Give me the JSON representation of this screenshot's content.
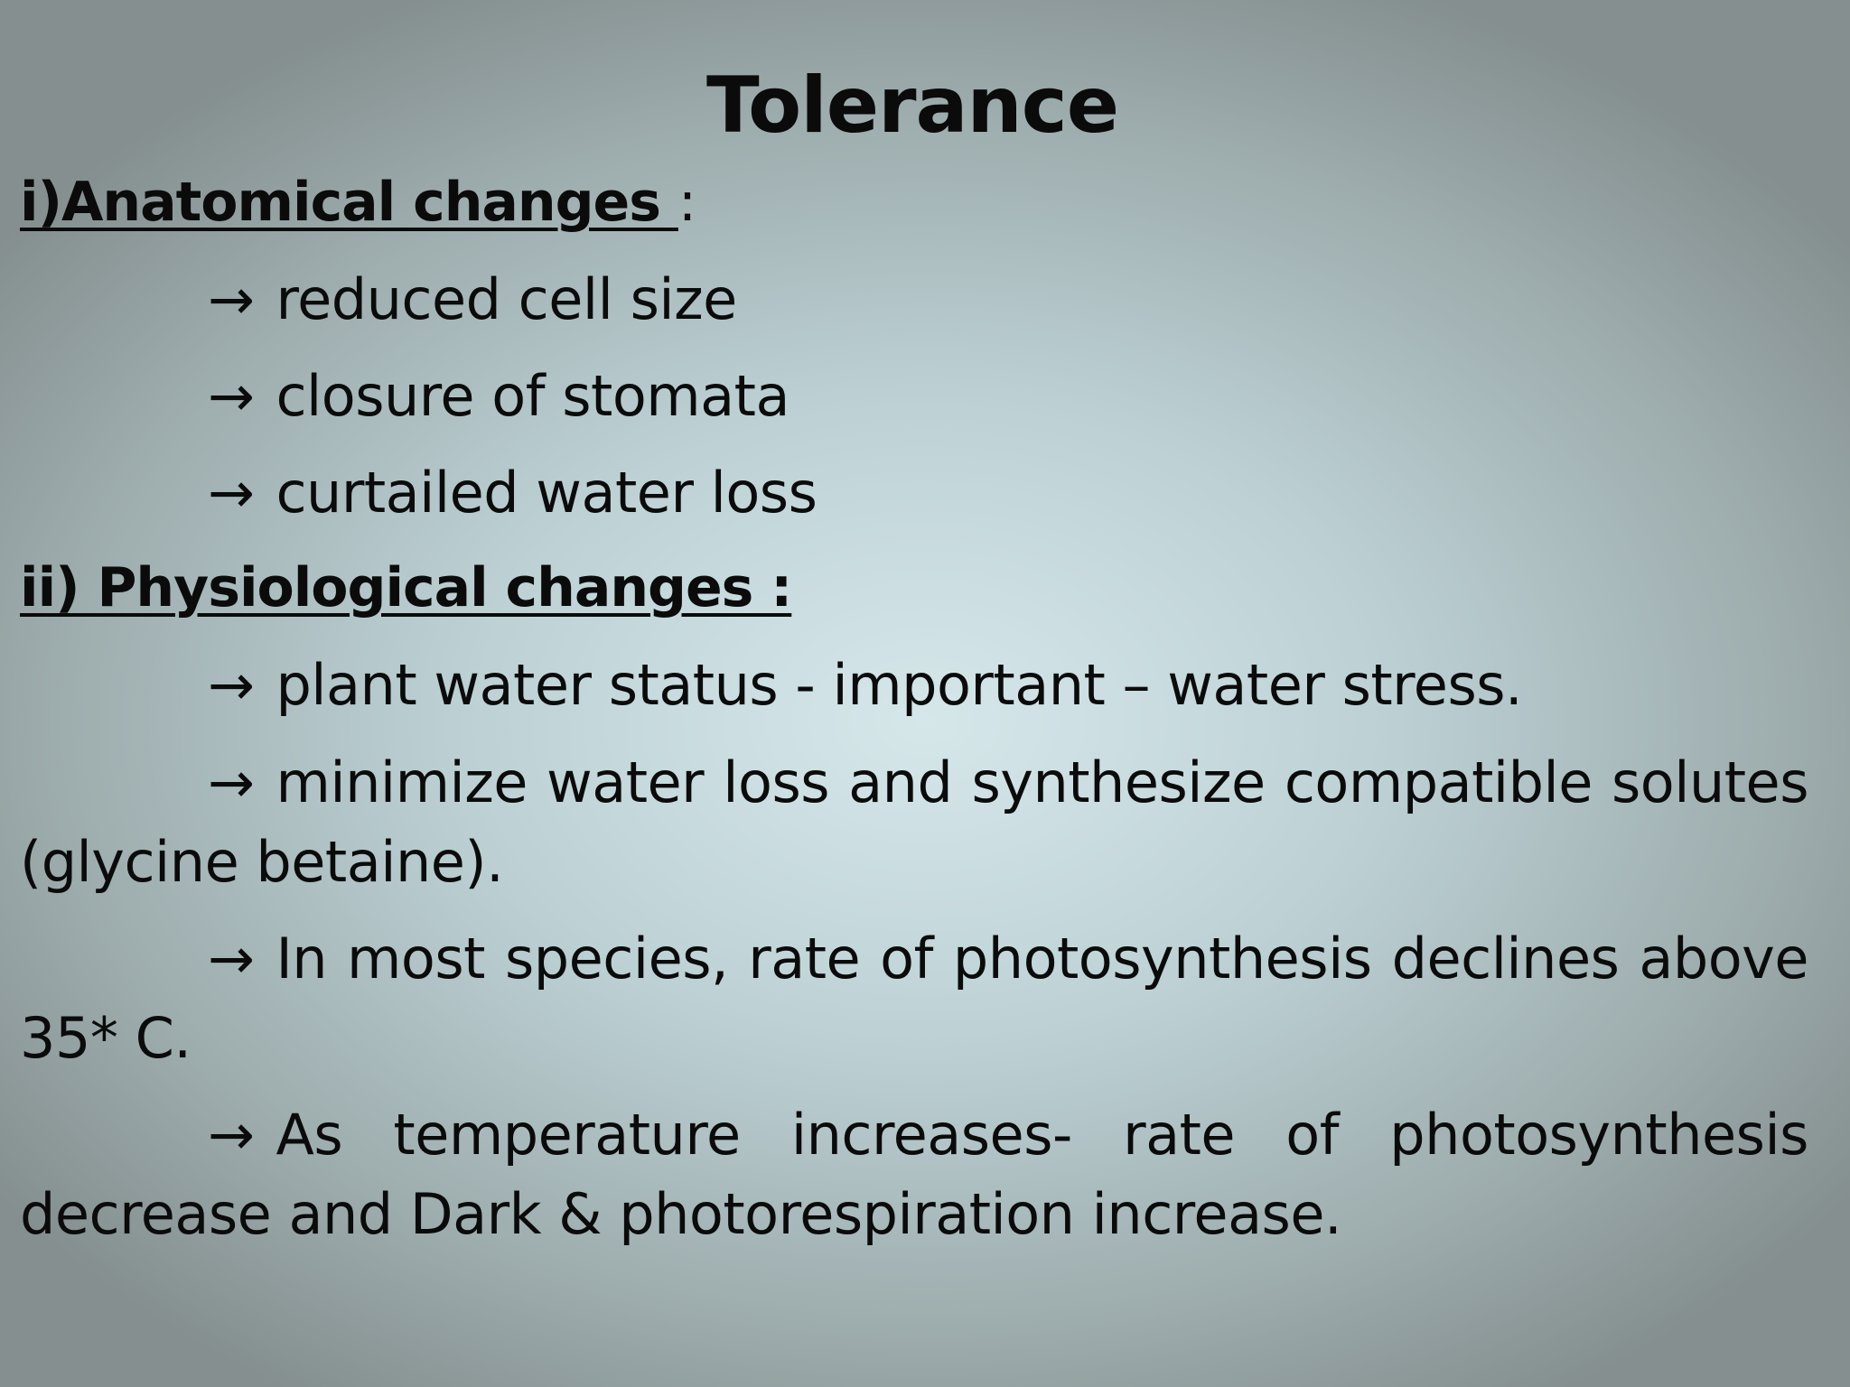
{
  "slide": {
    "title": "Tolerance",
    "arrow_glyph": "→",
    "section1": {
      "heading": "i)Anatomical changes ",
      "colon": ":",
      "items": [
        "reduced cell size",
        "closure of stomata",
        "curtailed water loss"
      ]
    },
    "section2": {
      "heading": "ii) Physiological changes :",
      "items": [
        "plant water status - important – water stress.",
        "minimize water loss and synthesize compatible solutes (glycine betaine).",
        "In most species, rate of photosynthesis declines above 35* C.",
        "As temperature increases-  rate of photosynthesis decrease and Dark & photorespiration increase."
      ]
    }
  }
}
